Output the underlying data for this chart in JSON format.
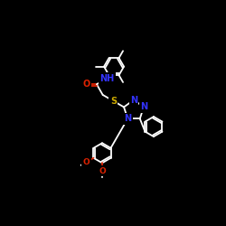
{
  "background_color": "#000000",
  "bond_color": "#ffffff",
  "atom_colors": {
    "N": "#3333ff",
    "O": "#dd2200",
    "S": "#ccaa00",
    "C": "#ffffff"
  },
  "font_size_atom": 7.0,
  "figsize": [
    2.5,
    2.5
  ],
  "dpi": 100
}
